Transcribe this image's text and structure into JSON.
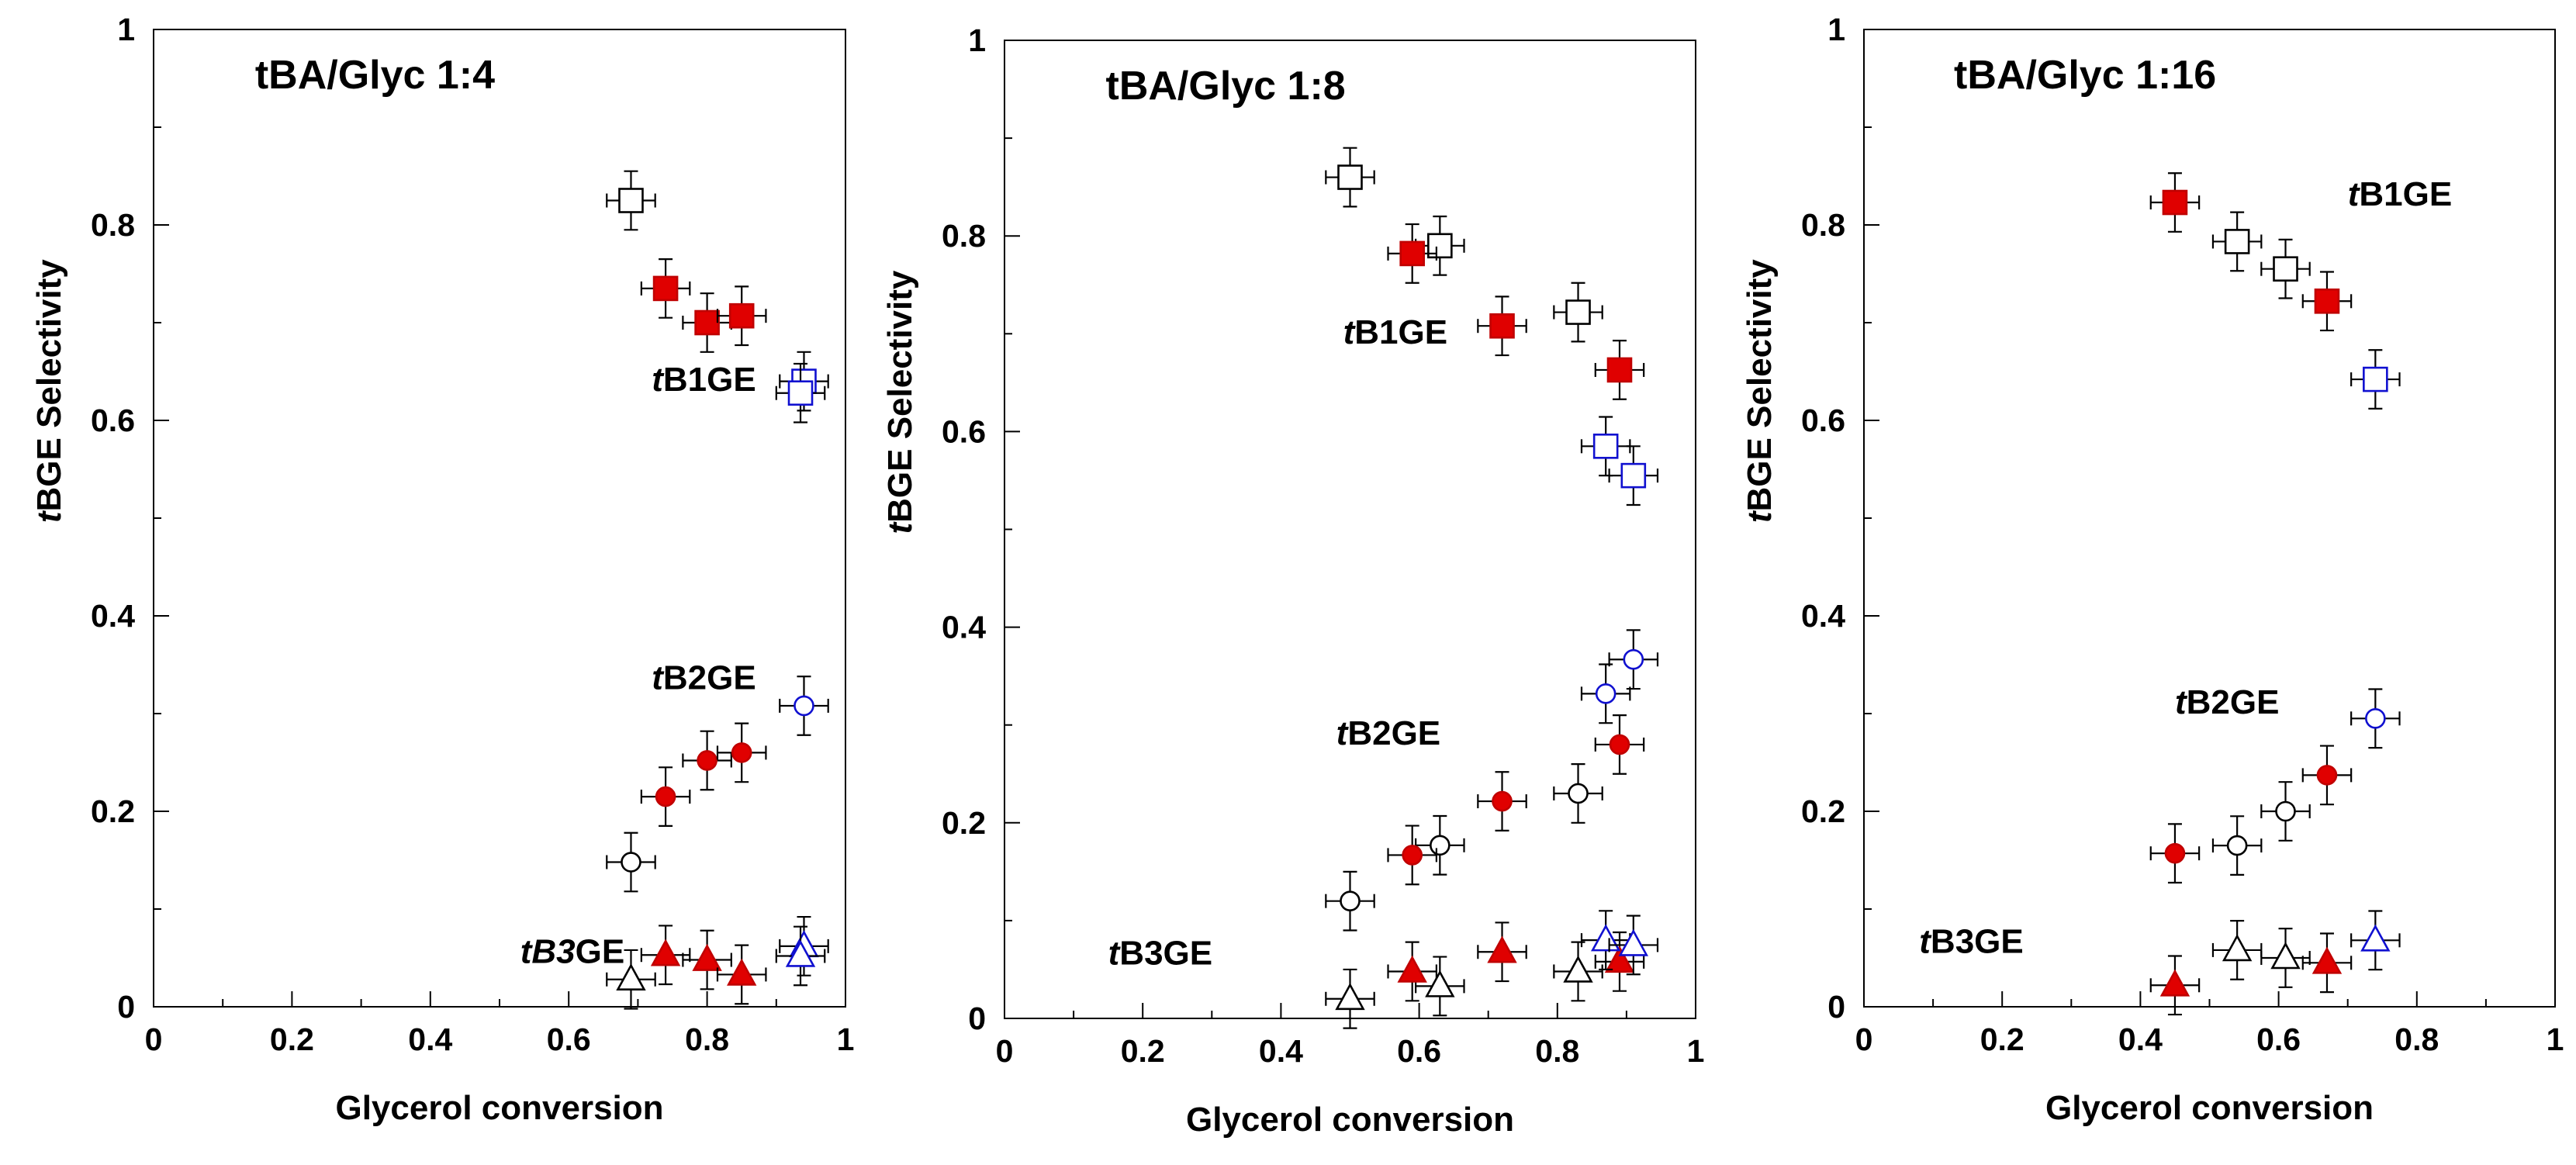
{
  "chart_data": [
    {
      "type": "scatter",
      "title": "tBA/Glyc 1:4",
      "xlabel": "Glycerol conversion",
      "ylabel_italic": "t",
      "ylabel_rest": "BGE Selectivity",
      "xlim": [
        0,
        1
      ],
      "ylim": [
        0,
        1
      ],
      "xticks": [
        "0",
        "0.2",
        "0.4",
        "0.6",
        "0.8",
        "1"
      ],
      "yticks": [
        "0",
        "0.2",
        "0.4",
        "0.6",
        "0.8",
        "1"
      ],
      "annotations": [
        {
          "italic": "t",
          "rest": "B1GE",
          "x": 0.72,
          "y": 0.63
        },
        {
          "italic": "t",
          "rest": "B2GE",
          "x": 0.72,
          "y": 0.325
        },
        {
          "italic": "tB3",
          "rest": "GE",
          "x": 0.53,
          "y": 0.045
        }
      ],
      "series": [
        {
          "name": "tB1GE open",
          "marker": "square",
          "fill": "#ffffff",
          "stroke": "#000000",
          "points": [
            {
              "x": 0.69,
              "y": 0.825
            }
          ]
        },
        {
          "name": "tB1GE red",
          "marker": "square",
          "fill": "#e00000",
          "stroke": "#c00000",
          "points": [
            {
              "x": 0.74,
              "y": 0.735
            },
            {
              "x": 0.8,
              "y": 0.7
            },
            {
              "x": 0.85,
              "y": 0.707
            }
          ]
        },
        {
          "name": "tB1GE blue",
          "marker": "square",
          "fill": "#ffffff",
          "stroke": "#1010d0",
          "points": [
            {
              "x": 0.94,
              "y": 0.64
            },
            {
              "x": 0.935,
              "y": 0.628
            }
          ]
        },
        {
          "name": "tB2GE open",
          "marker": "circle",
          "fill": "#ffffff",
          "stroke": "#000000",
          "points": [
            {
              "x": 0.69,
              "y": 0.148
            }
          ]
        },
        {
          "name": "tB2GE red",
          "marker": "circle",
          "fill": "#e00000",
          "stroke": "#c00000",
          "points": [
            {
              "x": 0.74,
              "y": 0.215
            },
            {
              "x": 0.8,
              "y": 0.252
            },
            {
              "x": 0.85,
              "y": 0.26
            }
          ]
        },
        {
          "name": "tB2GE blue",
          "marker": "circle",
          "fill": "#ffffff",
          "stroke": "#1010d0",
          "points": [
            {
              "x": 0.94,
              "y": 0.308
            }
          ]
        },
        {
          "name": "tB3GE open",
          "marker": "triangle",
          "fill": "#ffffff",
          "stroke": "#000000",
          "points": [
            {
              "x": 0.69,
              "y": 0.028
            }
          ]
        },
        {
          "name": "tB3GE red",
          "marker": "triangle",
          "fill": "#e00000",
          "stroke": "#c00000",
          "points": [
            {
              "x": 0.74,
              "y": 0.053
            },
            {
              "x": 0.8,
              "y": 0.048
            },
            {
              "x": 0.85,
              "y": 0.033
            }
          ]
        },
        {
          "name": "tB3GE blue",
          "marker": "triangle",
          "fill": "#ffffff",
          "stroke": "#1010d0",
          "points": [
            {
              "x": 0.94,
              "y": 0.062
            },
            {
              "x": 0.935,
              "y": 0.052
            }
          ]
        }
      ]
    },
    {
      "type": "scatter",
      "title": "tBA/Glyc 1:8",
      "xlabel": "Glycerol conversion",
      "ylabel_italic": "t",
      "ylabel_rest": "BGE Selectivity",
      "xlim": [
        0,
        1
      ],
      "ylim": [
        0,
        1
      ],
      "xticks": [
        "0",
        "0.2",
        "0.4",
        "0.6",
        "0.8",
        "1"
      ],
      "yticks": [
        "0",
        "0.2",
        "0.4",
        "0.6",
        "0.8",
        "1"
      ],
      "annotations": [
        {
          "italic": "t",
          "rest": "B1GE",
          "x": 0.49,
          "y": 0.69
        },
        {
          "italic": "t",
          "rest": "B2GE",
          "x": 0.48,
          "y": 0.28
        },
        {
          "italic": "t",
          "rest": "B3GE",
          "x": 0.15,
          "y": 0.055
        }
      ],
      "series": [
        {
          "name": "tB1GE open",
          "marker": "square",
          "fill": "#ffffff",
          "stroke": "#000000",
          "points": [
            {
              "x": 0.5,
              "y": 0.86
            },
            {
              "x": 0.63,
              "y": 0.79
            },
            {
              "x": 0.83,
              "y": 0.722
            }
          ]
        },
        {
          "name": "tB1GE red",
          "marker": "square",
          "fill": "#e00000",
          "stroke": "#c00000",
          "points": [
            {
              "x": 0.59,
              "y": 0.782
            },
            {
              "x": 0.72,
              "y": 0.708
            },
            {
              "x": 0.89,
              "y": 0.663
            }
          ]
        },
        {
          "name": "tB1GE blue",
          "marker": "square",
          "fill": "#ffffff",
          "stroke": "#1010d0",
          "points": [
            {
              "x": 0.87,
              "y": 0.585
            },
            {
              "x": 0.91,
              "y": 0.555
            }
          ]
        },
        {
          "name": "tB2GE open",
          "marker": "circle",
          "fill": "#ffffff",
          "stroke": "#000000",
          "points": [
            {
              "x": 0.5,
              "y": 0.12
            },
            {
              "x": 0.63,
              "y": 0.177
            },
            {
              "x": 0.83,
              "y": 0.23
            }
          ]
        },
        {
          "name": "tB2GE red",
          "marker": "circle",
          "fill": "#e00000",
          "stroke": "#c00000",
          "points": [
            {
              "x": 0.59,
              "y": 0.167
            },
            {
              "x": 0.72,
              "y": 0.222
            },
            {
              "x": 0.89,
              "y": 0.28
            }
          ]
        },
        {
          "name": "tB2GE blue",
          "marker": "circle",
          "fill": "#ffffff",
          "stroke": "#1010d0",
          "points": [
            {
              "x": 0.87,
              "y": 0.332
            },
            {
              "x": 0.91,
              "y": 0.367
            }
          ]
        },
        {
          "name": "tB3GE open",
          "marker": "triangle",
          "fill": "#ffffff",
          "stroke": "#000000",
          "points": [
            {
              "x": 0.5,
              "y": 0.02
            },
            {
              "x": 0.63,
              "y": 0.033
            },
            {
              "x": 0.83,
              "y": 0.048
            }
          ]
        },
        {
          "name": "tB3GE red",
          "marker": "triangle",
          "fill": "#e00000",
          "stroke": "#c00000",
          "points": [
            {
              "x": 0.59,
              "y": 0.048
            },
            {
              "x": 0.72,
              "y": 0.068
            },
            {
              "x": 0.89,
              "y": 0.058
            }
          ]
        },
        {
          "name": "tB3GE blue",
          "marker": "triangle",
          "fill": "#ffffff",
          "stroke": "#1010d0",
          "points": [
            {
              "x": 0.87,
              "y": 0.08
            },
            {
              "x": 0.91,
              "y": 0.075
            }
          ]
        }
      ]
    },
    {
      "type": "scatter",
      "title": "tBA/Glyc  1:16",
      "xlabel": "Glycerol conversion",
      "ylabel_italic": "t",
      "ylabel_rest": "BGE Selectivity",
      "xlim": [
        0,
        1
      ],
      "ylim": [
        0,
        1
      ],
      "xticks": [
        "0",
        "0.2",
        "0.4",
        "0.6",
        "0.8",
        "1"
      ],
      "yticks": [
        "0",
        "0.2",
        "0.4",
        "0.6",
        "0.8",
        "1"
      ],
      "annotations": [
        {
          "italic": "t",
          "rest": "B1GE",
          "x": 0.7,
          "y": 0.82
        },
        {
          "italic": "t",
          "rest": "B2GE",
          "x": 0.45,
          "y": 0.3
        },
        {
          "italic": "t",
          "rest": "B3GE",
          "x": 0.08,
          "y": 0.055
        }
      ],
      "series": [
        {
          "name": "tB1GE open",
          "marker": "square",
          "fill": "#ffffff",
          "stroke": "#000000",
          "points": [
            {
              "x": 0.54,
              "y": 0.783
            },
            {
              "x": 0.61,
              "y": 0.755
            }
          ]
        },
        {
          "name": "tB1GE red",
          "marker": "square",
          "fill": "#e00000",
          "stroke": "#c00000",
          "points": [
            {
              "x": 0.45,
              "y": 0.823
            },
            {
              "x": 0.67,
              "y": 0.722
            }
          ]
        },
        {
          "name": "tB1GE blue",
          "marker": "square",
          "fill": "#ffffff",
          "stroke": "#1010d0",
          "points": [
            {
              "x": 0.74,
              "y": 0.642
            }
          ]
        },
        {
          "name": "tB2GE open",
          "marker": "circle",
          "fill": "#ffffff",
          "stroke": "#000000",
          "points": [
            {
              "x": 0.54,
              "y": 0.165
            },
            {
              "x": 0.61,
              "y": 0.2
            }
          ]
        },
        {
          "name": "tB2GE red",
          "marker": "circle",
          "fill": "#e00000",
          "stroke": "#c00000",
          "points": [
            {
              "x": 0.45,
              "y": 0.157
            },
            {
              "x": 0.67,
              "y": 0.237
            }
          ]
        },
        {
          "name": "tB2GE blue",
          "marker": "circle",
          "fill": "#ffffff",
          "stroke": "#1010d0",
          "points": [
            {
              "x": 0.74,
              "y": 0.295
            }
          ]
        },
        {
          "name": "tB3GE open",
          "marker": "triangle",
          "fill": "#ffffff",
          "stroke": "#000000",
          "points": [
            {
              "x": 0.54,
              "y": 0.058
            },
            {
              "x": 0.61,
              "y": 0.05
            }
          ]
        },
        {
          "name": "tB3GE red",
          "marker": "triangle",
          "fill": "#e00000",
          "stroke": "#c00000",
          "points": [
            {
              "x": 0.45,
              "y": 0.022
            },
            {
              "x": 0.67,
              "y": 0.045
            }
          ]
        },
        {
          "name": "tB3GE blue",
          "marker": "triangle",
          "fill": "#ffffff",
          "stroke": "#1010d0",
          "points": [
            {
              "x": 0.74,
              "y": 0.068
            }
          ]
        }
      ]
    }
  ]
}
